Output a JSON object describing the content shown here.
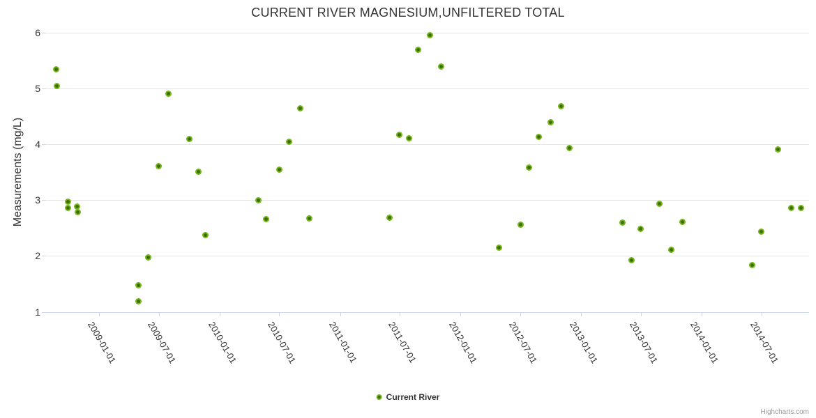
{
  "chart": {
    "credits_label": "Highcharts.com"
  },
  "colors": {
    "marker": "#74b71b",
    "marker_center": "#3e6c04",
    "grid": "#e6e6e6",
    "axis": "#ccd6eb",
    "text": "#333333",
    "credits": "#999999"
  },
  "chart_data": {
    "type": "scatter",
    "title": "CURRENT RIVER MAGNESIUM,UNFILTERED TOTAL",
    "xlabel": "",
    "ylabel": "Measurements (mg/L)",
    "ylim": [
      1,
      6
    ],
    "yticks": [
      1,
      2,
      3,
      4,
      5,
      6
    ],
    "xticks": [
      "2009-01-01",
      "2009-07-01",
      "2010-01-01",
      "2010-07-01",
      "2011-01-01",
      "2011-07-01",
      "2012-01-01",
      "2012-07-01",
      "2013-01-01",
      "2013-07-01",
      "2014-01-01",
      "2014-07-01"
    ],
    "grid": "horizontal",
    "legend": {
      "position": "bottom-center"
    },
    "series": [
      {
        "name": "Current River",
        "color": "#74b71b",
        "points": [
          {
            "date": "2008-08-25",
            "value": 5.35
          },
          {
            "date": "2008-08-26",
            "value": 5.04
          },
          {
            "date": "2008-09-30",
            "value": 2.97
          },
          {
            "date": "2008-09-30",
            "value": 2.86
          },
          {
            "date": "2008-10-27",
            "value": 2.88
          },
          {
            "date": "2008-10-28",
            "value": 2.78
          },
          {
            "date": "2009-05-01",
            "value": 1.48
          },
          {
            "date": "2009-05-01",
            "value": 1.19
          },
          {
            "date": "2009-05-31",
            "value": 1.97
          },
          {
            "date": "2009-07-01",
            "value": 3.61
          },
          {
            "date": "2009-07-31",
            "value": 4.91
          },
          {
            "date": "2009-10-02",
            "value": 4.1
          },
          {
            "date": "2009-10-30",
            "value": 3.51
          },
          {
            "date": "2009-11-20",
            "value": 2.37
          },
          {
            "date": "2010-04-28",
            "value": 3.0
          },
          {
            "date": "2010-05-21",
            "value": 2.66
          },
          {
            "date": "2010-07-02",
            "value": 3.55
          },
          {
            "date": "2010-07-30",
            "value": 4.05
          },
          {
            "date": "2010-09-03",
            "value": 4.64
          },
          {
            "date": "2010-09-29",
            "value": 2.67
          },
          {
            "date": "2011-05-30",
            "value": 2.69
          },
          {
            "date": "2011-06-30",
            "value": 4.17
          },
          {
            "date": "2011-07-30",
            "value": 4.11
          },
          {
            "date": "2011-08-26",
            "value": 5.69
          },
          {
            "date": "2011-10-01",
            "value": 5.96
          },
          {
            "date": "2011-11-04",
            "value": 5.4
          },
          {
            "date": "2012-04-27",
            "value": 2.15
          },
          {
            "date": "2012-07-02",
            "value": 2.56
          },
          {
            "date": "2012-07-27",
            "value": 3.58
          },
          {
            "date": "2012-08-26",
            "value": 4.13
          },
          {
            "date": "2012-09-29",
            "value": 4.4
          },
          {
            "date": "2012-10-31",
            "value": 4.68
          },
          {
            "date": "2012-11-27",
            "value": 3.94
          },
          {
            "date": "2013-05-06",
            "value": 2.6
          },
          {
            "date": "2013-06-02",
            "value": 1.93
          },
          {
            "date": "2013-06-30",
            "value": 2.49
          },
          {
            "date": "2013-08-26",
            "value": 2.94
          },
          {
            "date": "2013-10-01",
            "value": 2.11
          },
          {
            "date": "2013-11-04",
            "value": 2.61
          },
          {
            "date": "2014-06-03",
            "value": 1.84
          },
          {
            "date": "2014-07-01",
            "value": 2.43
          },
          {
            "date": "2014-08-20",
            "value": 3.91
          },
          {
            "date": "2014-09-30",
            "value": 2.86
          },
          {
            "date": "2014-10-29",
            "value": 2.86
          }
        ]
      }
    ]
  }
}
